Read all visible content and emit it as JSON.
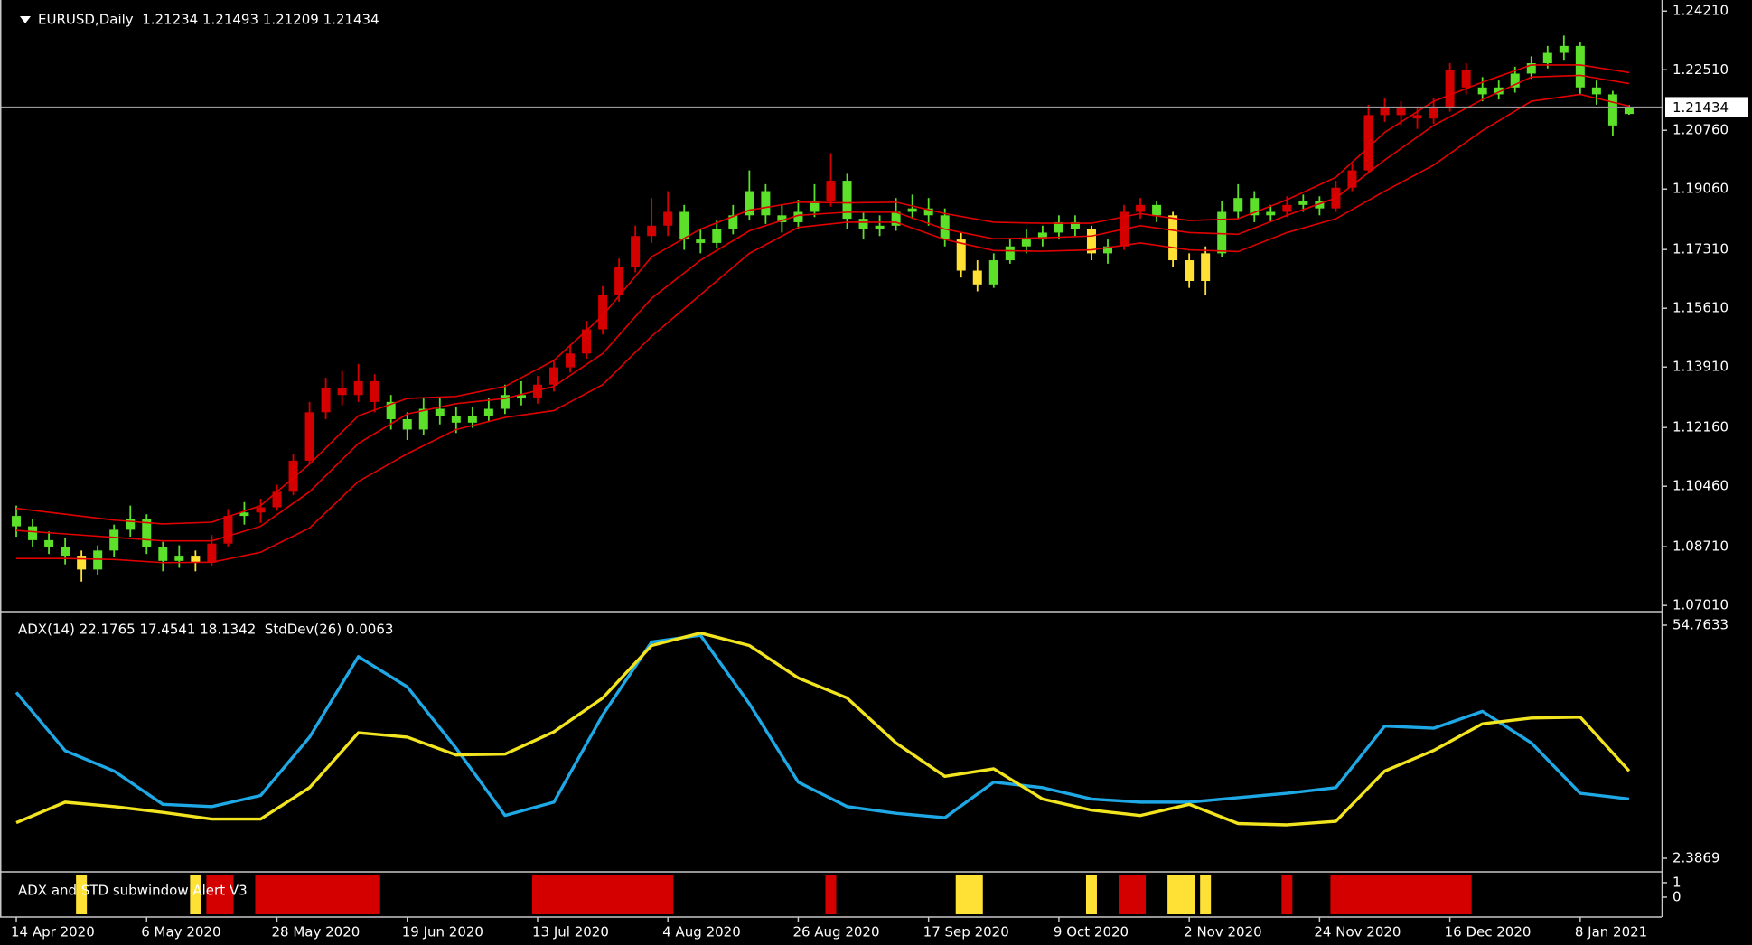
{
  "chart_data": [
    {
      "type": "candlestick",
      "title": "EURUSD,Daily  1.21234 1.21493 1.21209 1.21434",
      "candle_color": "#5ce02a",
      "xlim": [
        -1,
        101
      ],
      "ylim": [
        1.0691,
        1.2453
      ],
      "yticks": [
        {
          "value": 1.2421,
          "label": "1.24210"
        },
        {
          "value": 1.2251,
          "label": "1.22510"
        },
        {
          "value": 1.2076,
          "label": "1.20760"
        },
        {
          "value": 1.1906,
          "label": "1.19060"
        },
        {
          "value": 1.1731,
          "label": "1.17310"
        },
        {
          "value": 1.1561,
          "label": "1.15610"
        },
        {
          "value": 1.1391,
          "label": "1.13910"
        },
        {
          "value": 1.1216,
          "label": "1.12160"
        },
        {
          "value": 1.1046,
          "label": "1.10460"
        },
        {
          "value": 1.0871,
          "label": "1.08710"
        },
        {
          "value": 1.0701,
          "label": "1.07010"
        }
      ],
      "price_line": {
        "value": 1.21434,
        "label": "1.21434",
        "color": "#9a9a9a"
      },
      "ohlc": [
        [
          1.096,
          1.099,
          1.09,
          1.093
        ],
        [
          1.093,
          1.095,
          1.087,
          1.089
        ],
        [
          1.089,
          1.0915,
          1.085,
          1.087
        ],
        [
          1.087,
          1.0895,
          1.082,
          1.0845
        ],
        [
          1.0845,
          1.086,
          1.077,
          1.0805
        ],
        [
          1.0805,
          1.0875,
          1.079,
          1.086
        ],
        [
          1.086,
          1.0935,
          1.084,
          1.092
        ],
        [
          1.092,
          1.099,
          1.09,
          1.095
        ],
        [
          1.095,
          1.0965,
          1.085,
          1.087
        ],
        [
          1.087,
          1.0885,
          1.08,
          1.083
        ],
        [
          1.083,
          1.0875,
          1.081,
          1.0845
        ],
        [
          1.0845,
          1.086,
          1.08,
          1.0825
        ],
        [
          1.0825,
          1.0905,
          1.0815,
          1.088
        ],
        [
          1.088,
          1.098,
          1.087,
          1.096
        ],
        [
          1.096,
          1.1,
          1.0935,
          1.097
        ],
        [
          1.097,
          1.101,
          1.094,
          1.0985
        ],
        [
          1.0985,
          1.105,
          1.0975,
          1.103
        ],
        [
          1.103,
          1.114,
          1.102,
          1.112
        ],
        [
          1.112,
          1.129,
          1.111,
          1.126
        ],
        [
          1.126,
          1.136,
          1.124,
          1.133
        ],
        [
          1.133,
          1.138,
          1.128,
          1.131
        ],
        [
          1.131,
          1.14,
          1.129,
          1.135
        ],
        [
          1.135,
          1.137,
          1.126,
          1.129
        ],
        [
          1.129,
          1.131,
          1.121,
          1.124
        ],
        [
          1.124,
          1.126,
          1.118,
          1.121
        ],
        [
          1.121,
          1.13,
          1.1195,
          1.127
        ],
        [
          1.127,
          1.13,
          1.1225,
          1.125
        ],
        [
          1.125,
          1.1275,
          1.12,
          1.123
        ],
        [
          1.123,
          1.1275,
          1.1215,
          1.125
        ],
        [
          1.125,
          1.13,
          1.1235,
          1.127
        ],
        [
          1.127,
          1.134,
          1.1255,
          1.131
        ],
        [
          1.131,
          1.135,
          1.128,
          1.13
        ],
        [
          1.13,
          1.1365,
          1.1285,
          1.134
        ],
        [
          1.134,
          1.141,
          1.132,
          1.139
        ],
        [
          1.139,
          1.1455,
          1.1375,
          1.143
        ],
        [
          1.143,
          1.1525,
          1.1415,
          1.15
        ],
        [
          1.15,
          1.1625,
          1.1485,
          1.16
        ],
        [
          1.16,
          1.1705,
          1.158,
          1.168
        ],
        [
          1.168,
          1.18,
          1.1665,
          1.177
        ],
        [
          1.177,
          1.188,
          1.175,
          1.18
        ],
        [
          1.18,
          1.19,
          1.177,
          1.184
        ],
        [
          1.184,
          1.186,
          1.173,
          1.176
        ],
        [
          1.176,
          1.179,
          1.172,
          1.175
        ],
        [
          1.175,
          1.1815,
          1.1735,
          1.179
        ],
        [
          1.179,
          1.186,
          1.1775,
          1.183
        ],
        [
          1.183,
          1.196,
          1.1815,
          1.19
        ],
        [
          1.19,
          1.192,
          1.1805,
          1.183
        ],
        [
          1.183,
          1.186,
          1.178,
          1.181
        ],
        [
          1.181,
          1.1875,
          1.179,
          1.184
        ],
        [
          1.184,
          1.192,
          1.1825,
          1.187
        ],
        [
          1.187,
          1.201,
          1.1855,
          1.193
        ],
        [
          1.193,
          1.195,
          1.179,
          1.182
        ],
        [
          1.182,
          1.184,
          1.176,
          1.179
        ],
        [
          1.179,
          1.183,
          1.177,
          1.18
        ],
        [
          1.18,
          1.188,
          1.1785,
          1.184
        ],
        [
          1.184,
          1.189,
          1.182,
          1.185
        ],
        [
          1.185,
          1.188,
          1.18,
          1.183
        ],
        [
          1.183,
          1.185,
          1.174,
          1.176
        ],
        [
          1.176,
          1.178,
          1.165,
          1.167
        ],
        [
          1.167,
          1.17,
          1.161,
          1.163
        ],
        [
          1.163,
          1.172,
          1.162,
          1.17
        ],
        [
          1.17,
          1.176,
          1.169,
          1.174
        ],
        [
          1.174,
          1.179,
          1.172,
          1.176
        ],
        [
          1.176,
          1.18,
          1.174,
          1.178
        ],
        [
          1.178,
          1.183,
          1.176,
          1.181
        ],
        [
          1.181,
          1.183,
          1.177,
          1.179
        ],
        [
          1.179,
          1.18,
          1.17,
          1.172
        ],
        [
          1.172,
          1.176,
          1.169,
          1.174
        ],
        [
          1.174,
          1.186,
          1.173,
          1.184
        ],
        [
          1.184,
          1.188,
          1.182,
          1.186
        ],
        [
          1.186,
          1.187,
          1.181,
          1.183
        ],
        [
          1.183,
          1.184,
          1.168,
          1.17
        ],
        [
          1.17,
          1.172,
          1.162,
          1.164
        ],
        [
          1.164,
          1.174,
          1.16,
          1.172
        ],
        [
          1.172,
          1.187,
          1.171,
          1.184
        ],
        [
          1.184,
          1.192,
          1.182,
          1.188
        ],
        [
          1.188,
          1.19,
          1.181,
          1.183
        ],
        [
          1.183,
          1.186,
          1.181,
          1.184
        ],
        [
          1.184,
          1.1885,
          1.1825,
          1.186
        ],
        [
          1.186,
          1.189,
          1.184,
          1.187
        ],
        [
          1.187,
          1.1885,
          1.183,
          1.185
        ],
        [
          1.185,
          1.193,
          1.184,
          1.191
        ],
        [
          1.191,
          1.198,
          1.19,
          1.196
        ],
        [
          1.196,
          1.215,
          1.195,
          1.212
        ],
        [
          1.212,
          1.217,
          1.21,
          1.214
        ],
        [
          1.214,
          1.216,
          1.209,
          1.212
        ],
        [
          1.212,
          1.214,
          1.208,
          1.211
        ],
        [
          1.211,
          1.217,
          1.2095,
          1.214
        ],
        [
          1.214,
          1.227,
          1.213,
          1.225
        ],
        [
          1.225,
          1.227,
          1.218,
          1.22
        ],
        [
          1.22,
          1.223,
          1.216,
          1.218
        ],
        [
          1.218,
          1.222,
          1.2165,
          1.22
        ],
        [
          1.22,
          1.226,
          1.2185,
          1.224
        ],
        [
          1.224,
          1.229,
          1.2225,
          1.227
        ],
        [
          1.227,
          1.232,
          1.2255,
          1.23
        ],
        [
          1.23,
          1.235,
          1.228,
          1.232
        ],
        [
          1.232,
          1.233,
          1.218,
          1.22
        ],
        [
          1.22,
          1.222,
          1.215,
          1.218
        ],
        [
          1.218,
          1.219,
          1.206,
          1.209
        ],
        [
          1.21234,
          1.21493,
          1.21209,
          1.21434
        ]
      ],
      "series": [
        {
          "color": "#e00000",
          "x": [
            0,
            3,
            6,
            9,
            12,
            15,
            18,
            21,
            24,
            27,
            30,
            33,
            36,
            39,
            42,
            45,
            48,
            51,
            54,
            57,
            60,
            63,
            66,
            69,
            72,
            75,
            78,
            81,
            84,
            87,
            90,
            93,
            96,
            99
          ],
          "values": [
            1.0982,
            1.0965,
            1.0948,
            1.0937,
            1.0942,
            1.099,
            1.111,
            1.125,
            1.13,
            1.1306,
            1.1335,
            1.141,
            1.154,
            1.171,
            1.179,
            1.1845,
            1.1868,
            1.1866,
            1.1868,
            1.1835,
            1.181,
            1.1807,
            1.1807,
            1.1835,
            1.1815,
            1.182,
            1.1875,
            1.194,
            1.207,
            1.216,
            1.2215,
            1.2265,
            1.2265,
            1.2243
          ]
        },
        {
          "color": "#e00000",
          "x": [
            0,
            3,
            6,
            9,
            12,
            15,
            18,
            21,
            24,
            27,
            30,
            33,
            36,
            39,
            42,
            45,
            48,
            51,
            54,
            57,
            60,
            63,
            66,
            69,
            72,
            75,
            78,
            81,
            84,
            87,
            90,
            93,
            96,
            99
          ],
          "values": [
            1.0918,
            1.0908,
            1.0898,
            1.0888,
            1.0888,
            1.093,
            1.103,
            1.117,
            1.1255,
            1.1285,
            1.13,
            1.1335,
            1.143,
            1.159,
            1.17,
            1.1785,
            1.183,
            1.1839,
            1.1839,
            1.179,
            1.1762,
            1.1765,
            1.177,
            1.18,
            1.178,
            1.1775,
            1.183,
            1.188,
            1.199,
            1.209,
            1.2165,
            1.223,
            1.2235,
            1.2211
          ]
        },
        {
          "color": "#e00000",
          "x": [
            0,
            3,
            6,
            9,
            12,
            15,
            18,
            21,
            24,
            27,
            30,
            33,
            36,
            39,
            42,
            45,
            48,
            51,
            54,
            57,
            60,
            63,
            66,
            69,
            72,
            75,
            78,
            81,
            84,
            87,
            90,
            93,
            96,
            99
          ],
          "values": [
            1.0837,
            1.0837,
            1.0834,
            1.0825,
            1.0826,
            1.0855,
            1.0925,
            1.106,
            1.114,
            1.121,
            1.1245,
            1.1265,
            1.134,
            1.148,
            1.16,
            1.172,
            1.1795,
            1.181,
            1.181,
            1.176,
            1.1728,
            1.1726,
            1.173,
            1.175,
            1.173,
            1.1725,
            1.178,
            1.182,
            1.19,
            1.1975,
            1.2075,
            1.216,
            1.218,
            1.2146
          ]
        }
      ]
    },
    {
      "type": "line",
      "title": "ADX(14) 22.1765 17.4541 18.1342  StdDev(26) 0.0063",
      "xlim": [
        -1,
        101
      ],
      "ylim": [
        2.3869,
        54.7633
      ],
      "yticks": [
        54.7633,
        2.3869
      ],
      "x": [
        0,
        3,
        6,
        9,
        12,
        15,
        18,
        21,
        24,
        27,
        30,
        33,
        36,
        39,
        42,
        45,
        48,
        51,
        54,
        57,
        60,
        63,
        66,
        69,
        72,
        75,
        78,
        81,
        84,
        87,
        90,
        93,
        96,
        99
      ],
      "series": [
        {
          "color": "#1ea8e6",
          "values": [
            39.65,
            26.56,
            22.0,
            14.5,
            14.0,
            16.5,
            29.6,
            47.7,
            40.9,
            27.1,
            12.0,
            15.0,
            34.6,
            51.0,
            52.5,
            37.1,
            19.5,
            14.0,
            12.5,
            11.5,
            19.5,
            18.25,
            15.7,
            15.0,
            15.0,
            16.0,
            17.0,
            18.25,
            32.1,
            31.6,
            35.4,
            28.3,
            17.0,
            15.7
          ]
        },
        {
          "color": "#f2e41e",
          "values": [
            10.4,
            15.0,
            14.0,
            12.7,
            11.2,
            11.2,
            18.25,
            30.6,
            29.6,
            25.6,
            25.8,
            30.8,
            38.4,
            50.2,
            53.0,
            50.2,
            42.9,
            38.4,
            28.3,
            20.8,
            22.5,
            15.7,
            13.2,
            12.0,
            14.5,
            10.2,
            9.9,
            10.7,
            22.0,
            26.6,
            32.6,
            33.9,
            34.1,
            22.0
          ]
        }
      ]
    },
    {
      "type": "alert",
      "title": "ADX and STD subwindow Alert V3",
      "xlim": [
        -1,
        101
      ],
      "ylim": [
        -1.19,
        1.56
      ],
      "yticks": [
        1,
        0
      ],
      "segments": [
        {
          "start": 4,
          "end": 4,
          "color": "#ffe135"
        },
        {
          "start": 11,
          "end": 11,
          "color": "#ffe135"
        },
        {
          "start": 12,
          "end": 13,
          "color": "#d40000"
        },
        {
          "start": 15,
          "end": 22,
          "color": "#d40000"
        },
        {
          "start": 32,
          "end": 40,
          "color": "#d40000"
        },
        {
          "start": 50,
          "end": 50,
          "color": "#d40000"
        },
        {
          "start": 58,
          "end": 59,
          "color": "#ffe135"
        },
        {
          "start": 66,
          "end": 66,
          "color": "#ffe135"
        },
        {
          "start": 68,
          "end": 69,
          "color": "#d40000"
        },
        {
          "start": 71,
          "end": 72,
          "color": "#ffe135"
        },
        {
          "start": 73,
          "end": 73,
          "color": "#ffe135"
        },
        {
          "start": 78,
          "end": 78,
          "color": "#d40000"
        },
        {
          "start": 81,
          "end": 89,
          "color": "#d40000"
        }
      ],
      "xticks": [
        {
          "value": 0,
          "label": "14 Apr 2020"
        },
        {
          "value": 8,
          "label": "6 May 2020"
        },
        {
          "value": 16,
          "label": "28 May 2020"
        },
        {
          "value": 24,
          "label": "19 Jun 2020"
        },
        {
          "value": 32,
          "label": "13 Jul 2020"
        },
        {
          "value": 40,
          "label": "4 Aug 2020"
        },
        {
          "value": 48,
          "label": "26 Aug 2020"
        },
        {
          "value": 56,
          "label": "17 Sep 2020"
        },
        {
          "value": 64,
          "label": "9 Oct 2020"
        },
        {
          "value": 72,
          "label": "2 Nov 2020"
        },
        {
          "value": 80,
          "label": "24 Nov 2020"
        },
        {
          "value": 88,
          "label": "16 Dec 2020"
        },
        {
          "value": 96,
          "label": "8 Jan 2021"
        }
      ]
    }
  ]
}
